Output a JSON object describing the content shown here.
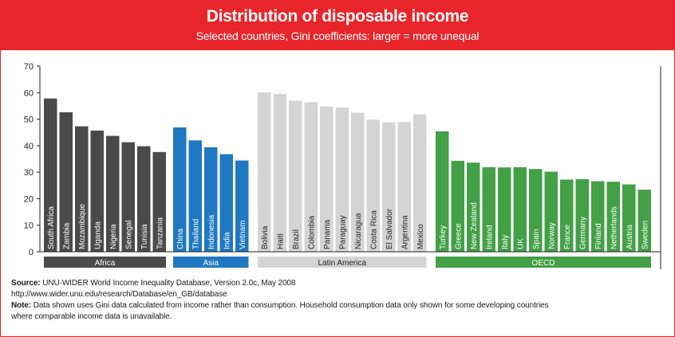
{
  "header": {
    "title": "Distribution of disposable income",
    "subtitle": "Selected countries, Gini coefficients: larger = more unequal"
  },
  "chart_data": {
    "type": "bar",
    "title": "Distribution of disposable income",
    "subtitle": "Selected countries, Gini coefficients: larger = more unequal",
    "xlabel": "",
    "ylabel": "",
    "ylim": [
      0,
      70
    ],
    "yticks": [
      0,
      10,
      20,
      30,
      40,
      50,
      60,
      70
    ],
    "grid": false,
    "groups": [
      {
        "name": "Africa",
        "color": "#4a4a4a",
        "categories": [
          "South Africa",
          "Zambia",
          "Mozambique",
          "Uganda",
          "Nigeria",
          "Senegal",
          "Tunisia",
          "Tanzania"
        ],
        "values": [
          57.8,
          52.6,
          47.3,
          45.7,
          43.7,
          41.3,
          39.8,
          37.6
        ]
      },
      {
        "name": "Asia",
        "color": "#1f78c1",
        "categories": [
          "China",
          "Thailand",
          "Indonesia",
          "India",
          "Vietnam"
        ],
        "values": [
          46.9,
          42.0,
          39.4,
          36.8,
          34.4
        ]
      },
      {
        "name": "Latin America",
        "color": "#d4d4d4",
        "categories": [
          "Bolivia",
          "Haiti",
          "Brazil",
          "Colombia",
          "Panama",
          "Paraguay",
          "Nicaragua",
          "Costa Rica",
          "El Salvador",
          "Argentina",
          "Mexico"
        ],
        "values": [
          60.1,
          59.5,
          57.0,
          56.4,
          54.8,
          54.4,
          52.4,
          49.8,
          48.8,
          48.9,
          51.8
        ]
      },
      {
        "name": "OECD",
        "color": "#43a047",
        "categories": [
          "Turkey",
          "Greece",
          "New Zealand",
          "Ireland",
          "Italy",
          "UK",
          "Spain",
          "Norway",
          "France",
          "Germany",
          "Finland",
          "Netherlands",
          "Austria",
          "Sweden"
        ],
        "values": [
          45.4,
          34.3,
          33.6,
          31.9,
          31.8,
          31.9,
          31.2,
          30.2,
          27.2,
          27.4,
          26.6,
          26.4,
          25.4,
          23.4
        ]
      }
    ]
  },
  "notes": {
    "source_label": "Source:",
    "source_text": "UNU-WIDER World Income Inequality Database, Version 2.0c, May 2008",
    "url": "http://www.wider.unu.edu/research/Database/en_GB/database",
    "note_label": "Note:",
    "note_text": "Data shown uses Gini data calculated from income rather than consumption. Household consumption data only shown for some developing countries where comparable income data is unavailable."
  }
}
